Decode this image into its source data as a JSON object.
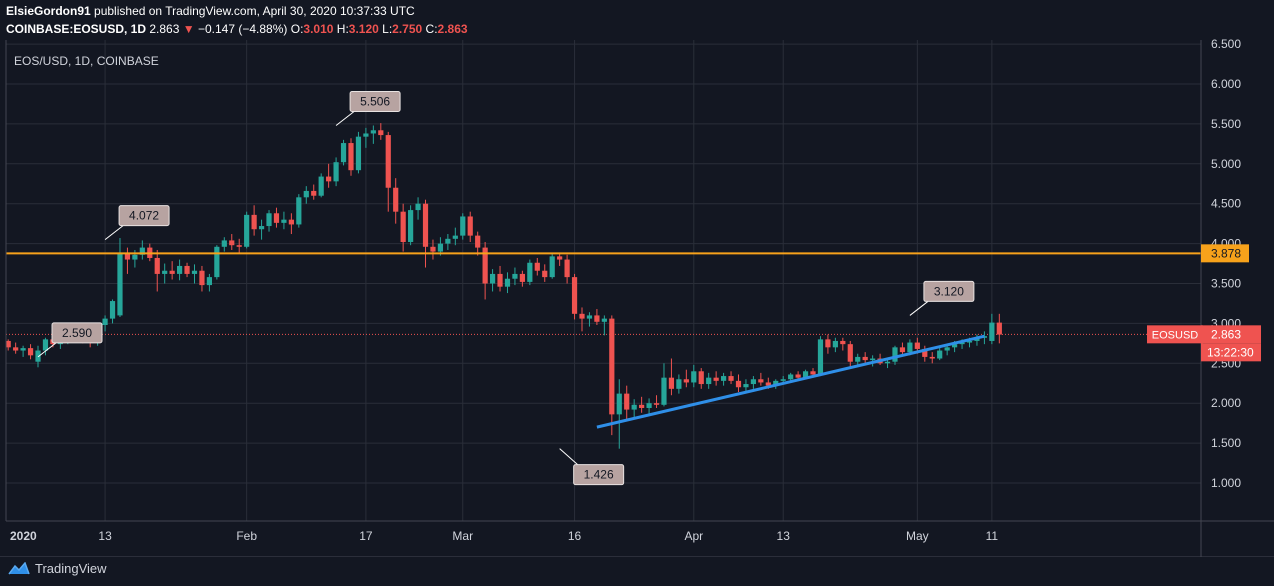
{
  "header": {
    "author": "ElsieGordon91",
    "published": " published on TradingView.com, April 30, 2020 10:37:33 UTC",
    "symbol": "COINBASE:EOSUSD, 1D",
    "last": "2.863",
    "change_arrow": "▼",
    "change": "−0.147 (−4.88%)",
    "o_label": "O:",
    "o_value": "3.010",
    "h_label": "H:",
    "h_value": "3.120",
    "l_label": "L:",
    "l_value": "2.750",
    "c_label": "C:",
    "c_value": "2.863"
  },
  "footer": {
    "brand": "TradingView",
    "logo_icon": "tradingview-logo-icon"
  },
  "colors": {
    "background": "#131722",
    "up": "#26a69a",
    "down": "#ef5350",
    "support_line": "#f7a21b",
    "trend_line": "#2f8fe8",
    "callout_bg": "#b7a3a1"
  },
  "chart_data": {
    "type": "candlestick",
    "title": "EOS/USD, 1D, COINBASE",
    "interval": "1D",
    "ylim": [
      0.6,
      6.5
    ],
    "y_ticks": [
      "1.000",
      "1.500",
      "2.000",
      "2.500",
      "3.000",
      "3.500",
      "4.000",
      "4.500",
      "5.000",
      "5.500",
      "6.000",
      "6.500"
    ],
    "x_ticks": [
      "2020",
      "13",
      "Feb",
      "17",
      "Mar",
      "16",
      "Apr",
      "13",
      "May",
      "11"
    ],
    "grid": true,
    "price_label": {
      "text": "EOSUSD",
      "value": "2.863",
      "countdown": "13:22:30"
    },
    "horizontal_line": {
      "value": 3.878,
      "label": "3.878"
    },
    "trend_line": {
      "from": {
        "date": "2020-03-19",
        "price": 1.7
      },
      "to": {
        "date": "2020-05-10",
        "price": 2.84
      }
    },
    "annotations": [
      {
        "text": "2.590",
        "date": "2020-01-04",
        "price": 2.58,
        "placement": "upper-right"
      },
      {
        "text": "4.072",
        "date": "2020-01-13",
        "price": 4.05,
        "placement": "upper-right"
      },
      {
        "text": "5.506",
        "date": "2020-02-13",
        "price": 5.48,
        "placement": "upper-right"
      },
      {
        "text": "1.426",
        "date": "2020-03-14",
        "price": 1.43,
        "placement": "lower-right"
      },
      {
        "text": "3.120",
        "date": "2020-04-30",
        "price": 3.1,
        "placement": "upper-right"
      }
    ],
    "start_date": "2019-12-31",
    "ohlc": [
      [
        2.78,
        2.8,
        2.66,
        2.7
      ],
      [
        2.7,
        2.76,
        2.62,
        2.66
      ],
      [
        2.66,
        2.72,
        2.58,
        2.69
      ],
      [
        2.69,
        2.74,
        2.55,
        2.6
      ],
      [
        2.52,
        2.72,
        2.45,
        2.66
      ],
      [
        2.66,
        2.82,
        2.6,
        2.8
      ],
      [
        2.8,
        2.86,
        2.7,
        2.74
      ],
      [
        2.74,
        2.82,
        2.68,
        2.78
      ],
      [
        2.78,
        2.9,
        2.74,
        2.86
      ],
      [
        2.86,
        2.92,
        2.78,
        2.84
      ],
      [
        2.84,
        2.9,
        2.75,
        2.82
      ],
      [
        2.82,
        2.88,
        2.7,
        2.76
      ],
      [
        2.76,
        3.0,
        2.72,
        2.98
      ],
      [
        2.98,
        3.1,
        2.9,
        3.06
      ],
      [
        3.06,
        3.3,
        3.0,
        3.28
      ],
      [
        3.1,
        4.07,
        3.08,
        3.88
      ],
      [
        3.88,
        3.95,
        3.62,
        3.8
      ],
      [
        3.8,
        3.92,
        3.7,
        3.86
      ],
      [
        3.86,
        4.04,
        3.8,
        3.95
      ],
      [
        3.95,
        4.0,
        3.78,
        3.82
      ],
      [
        3.82,
        3.92,
        3.4,
        3.62
      ],
      [
        3.62,
        3.75,
        3.5,
        3.66
      ],
      [
        3.66,
        3.78,
        3.55,
        3.62
      ],
      [
        3.62,
        3.8,
        3.54,
        3.72
      ],
      [
        3.72,
        3.76,
        3.58,
        3.62
      ],
      [
        3.62,
        3.74,
        3.5,
        3.66
      ],
      [
        3.66,
        3.72,
        3.4,
        3.48
      ],
      [
        3.48,
        3.62,
        3.4,
        3.58
      ],
      [
        3.58,
        3.98,
        3.55,
        3.96
      ],
      [
        3.96,
        4.08,
        3.9,
        4.04
      ],
      [
        4.04,
        4.12,
        3.92,
        3.98
      ],
      [
        3.98,
        4.06,
        3.88,
        3.96
      ],
      [
        3.96,
        4.4,
        3.94,
        4.36
      ],
      [
        4.36,
        4.48,
        4.1,
        4.18
      ],
      [
        4.18,
        4.3,
        4.05,
        4.22
      ],
      [
        4.22,
        4.42,
        4.15,
        4.38
      ],
      [
        4.38,
        4.45,
        4.2,
        4.26
      ],
      [
        4.26,
        4.4,
        4.18,
        4.3
      ],
      [
        4.3,
        4.38,
        4.12,
        4.24
      ],
      [
        4.24,
        4.62,
        4.2,
        4.58
      ],
      [
        4.58,
        4.72,
        4.5,
        4.66
      ],
      [
        4.66,
        4.74,
        4.55,
        4.6
      ],
      [
        4.6,
        4.88,
        4.58,
        4.84
      ],
      [
        4.84,
        5.0,
        4.7,
        4.78
      ],
      [
        4.78,
        5.08,
        4.72,
        5.02
      ],
      [
        5.02,
        5.3,
        4.98,
        5.26
      ],
      [
        5.26,
        5.32,
        4.85,
        4.92
      ],
      [
        4.92,
        5.4,
        4.88,
        5.34
      ],
      [
        5.34,
        5.45,
        5.2,
        5.38
      ],
      [
        5.38,
        5.48,
        5.25,
        5.42
      ],
      [
        5.42,
        5.51,
        5.3,
        5.36
      ],
      [
        5.36,
        5.4,
        4.4,
        4.7
      ],
      [
        4.7,
        4.82,
        4.25,
        4.4
      ],
      [
        4.4,
        4.5,
        3.9,
        4.02
      ],
      [
        4.02,
        4.48,
        3.98,
        4.42
      ],
      [
        4.42,
        4.58,
        4.3,
        4.5
      ],
      [
        4.5,
        4.55,
        3.7,
        3.96
      ],
      [
        3.96,
        4.05,
        3.8,
        3.9
      ],
      [
        3.9,
        4.08,
        3.85,
        4.0
      ],
      [
        4.0,
        4.12,
        3.92,
        4.06
      ],
      [
        4.06,
        4.2,
        3.98,
        4.1
      ],
      [
        4.1,
        4.38,
        4.05,
        4.34
      ],
      [
        4.34,
        4.4,
        4.02,
        4.1
      ],
      [
        4.1,
        4.15,
        3.85,
        3.95
      ],
      [
        3.95,
        4.02,
        3.3,
        3.5
      ],
      [
        3.5,
        3.68,
        3.4,
        3.62
      ],
      [
        3.62,
        3.72,
        3.4,
        3.46
      ],
      [
        3.46,
        3.64,
        3.38,
        3.56
      ],
      [
        3.56,
        3.7,
        3.48,
        3.62
      ],
      [
        3.62,
        3.66,
        3.46,
        3.52
      ],
      [
        3.52,
        3.8,
        3.48,
        3.76
      ],
      [
        3.76,
        3.82,
        3.6,
        3.66
      ],
      [
        3.66,
        3.74,
        3.52,
        3.58
      ],
      [
        3.58,
        3.88,
        3.56,
        3.84
      ],
      [
        3.84,
        3.88,
        3.72,
        3.8
      ],
      [
        3.8,
        3.86,
        3.5,
        3.58
      ],
      [
        3.58,
        3.62,
        3.05,
        3.12
      ],
      [
        3.12,
        3.2,
        2.9,
        3.06
      ],
      [
        3.06,
        3.14,
        2.96,
        3.1
      ],
      [
        3.1,
        3.18,
        2.98,
        3.02
      ],
      [
        3.02,
        3.1,
        2.85,
        3.06
      ],
      [
        3.06,
        3.1,
        1.6,
        1.86
      ],
      [
        1.86,
        2.3,
        1.43,
        2.12
      ],
      [
        2.12,
        2.22,
        1.8,
        1.92
      ],
      [
        1.92,
        2.05,
        1.82,
        1.98
      ],
      [
        1.98,
        2.08,
        1.88,
        1.94
      ],
      [
        1.94,
        2.06,
        1.86,
        2.0
      ],
      [
        2.0,
        2.1,
        1.94,
        1.98
      ],
      [
        1.98,
        2.5,
        1.96,
        2.32
      ],
      [
        2.32,
        2.56,
        2.1,
        2.18
      ],
      [
        2.18,
        2.36,
        2.12,
        2.3
      ],
      [
        2.3,
        2.42,
        2.2,
        2.26
      ],
      [
        2.26,
        2.48,
        2.2,
        2.4
      ],
      [
        2.4,
        2.44,
        2.18,
        2.24
      ],
      [
        2.24,
        2.38,
        2.18,
        2.32
      ],
      [
        2.32,
        2.4,
        2.22,
        2.28
      ],
      [
        2.28,
        2.38,
        2.22,
        2.34
      ],
      [
        2.34,
        2.4,
        2.24,
        2.28
      ],
      [
        2.28,
        2.36,
        2.14,
        2.2
      ],
      [
        2.2,
        2.3,
        2.14,
        2.24
      ],
      [
        2.24,
        2.34,
        2.18,
        2.3
      ],
      [
        2.3,
        2.38,
        2.22,
        2.26
      ],
      [
        2.26,
        2.32,
        2.18,
        2.22
      ],
      [
        2.22,
        2.3,
        2.18,
        2.28
      ],
      [
        2.28,
        2.34,
        2.24,
        2.3
      ],
      [
        2.3,
        2.38,
        2.26,
        2.36
      ],
      [
        2.36,
        2.4,
        2.28,
        2.32
      ],
      [
        2.32,
        2.42,
        2.3,
        2.4
      ],
      [
        2.4,
        2.44,
        2.32,
        2.36
      ],
      [
        2.36,
        2.84,
        2.34,
        2.8
      ],
      [
        2.8,
        2.86,
        2.62,
        2.7
      ],
      [
        2.7,
        2.82,
        2.64,
        2.78
      ],
      [
        2.78,
        2.82,
        2.66,
        2.74
      ],
      [
        2.74,
        2.78,
        2.46,
        2.52
      ],
      [
        2.52,
        2.62,
        2.46,
        2.58
      ],
      [
        2.58,
        2.64,
        2.48,
        2.54
      ],
      [
        2.54,
        2.6,
        2.46,
        2.56
      ],
      [
        2.56,
        2.62,
        2.48,
        2.5
      ],
      [
        2.5,
        2.56,
        2.44,
        2.52
      ],
      [
        2.52,
        2.72,
        2.48,
        2.7
      ],
      [
        2.7,
        2.76,
        2.6,
        2.64
      ],
      [
        2.64,
        2.8,
        2.6,
        2.76
      ],
      [
        2.76,
        2.82,
        2.62,
        2.68
      ],
      [
        2.68,
        2.72,
        2.52,
        2.58
      ],
      [
        2.58,
        2.64,
        2.5,
        2.56
      ],
      [
        2.56,
        2.7,
        2.54,
        2.66
      ],
      [
        2.66,
        2.74,
        2.6,
        2.7
      ],
      [
        2.7,
        2.78,
        2.64,
        2.74
      ],
      [
        2.74,
        2.8,
        2.68,
        2.76
      ],
      [
        2.76,
        2.82,
        2.7,
        2.78
      ],
      [
        2.78,
        2.86,
        2.72,
        2.82
      ],
      [
        2.82,
        2.9,
        2.74,
        2.84
      ],
      [
        2.78,
        3.12,
        2.74,
        3.01
      ],
      [
        3.01,
        3.12,
        2.75,
        2.86
      ]
    ]
  }
}
